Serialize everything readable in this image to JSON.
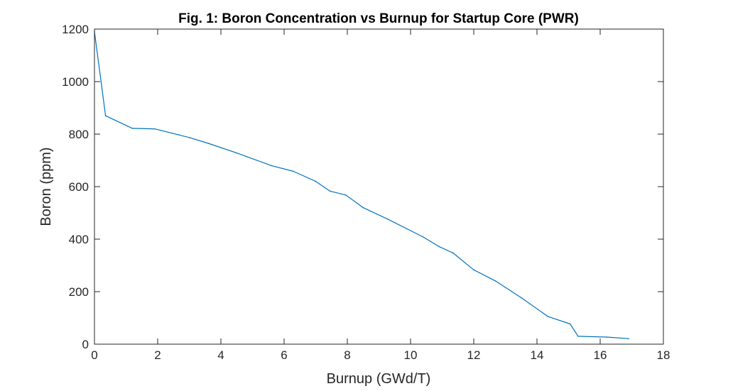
{
  "chart_data": {
    "type": "line",
    "title": "Fig. 1: Boron Concentration vs Burnup for Startup Core (PWR)",
    "xlabel": "Burnup (GWd/T)",
    "ylabel": "Boron (ppm)",
    "xlim": [
      0,
      18
    ],
    "ylim": [
      0,
      1200
    ],
    "xticks": [
      0,
      2,
      4,
      6,
      8,
      10,
      12,
      14,
      16,
      18
    ],
    "yticks": [
      0,
      200,
      400,
      600,
      800,
      1000,
      1200
    ],
    "grid": false,
    "legend": "none",
    "line_color": "#0072BD",
    "series": [
      {
        "x": [
          0.0,
          0.35,
          1.2,
          1.9,
          3.0,
          3.6,
          4.5,
          5.6,
          6.3,
          7.0,
          7.45,
          7.95,
          8.5,
          9.3,
          10.4,
          10.9,
          11.35,
          12.0,
          12.7,
          13.5,
          14.35,
          15.05,
          15.3,
          16.2,
          16.9
        ],
        "y": [
          1190,
          870,
          822,
          820,
          787,
          765,
          728,
          680,
          658,
          620,
          583,
          568,
          520,
          475,
          408,
          372,
          347,
          283,
          240,
          177,
          105,
          77,
          30,
          27,
          21
        ]
      }
    ]
  }
}
